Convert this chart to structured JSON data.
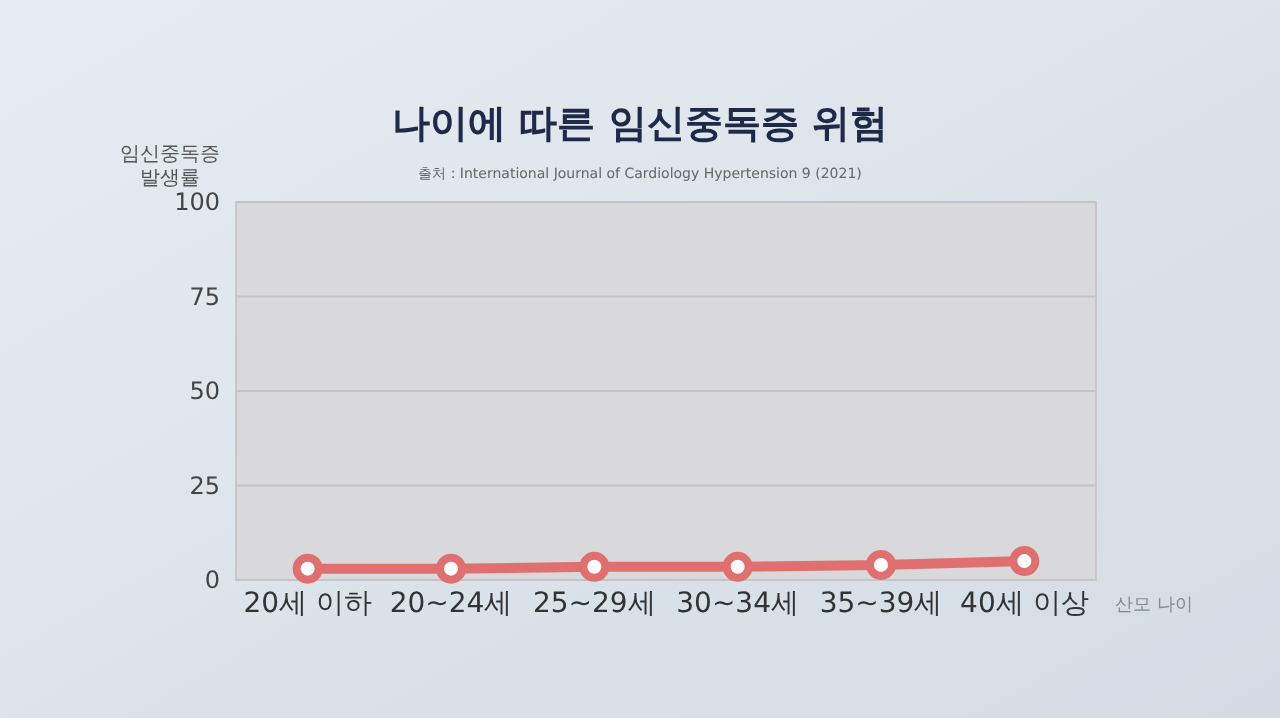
{
  "chart_data": {
    "type": "line",
    "title": "나이에 따른 임신중독증 위험",
    "subtitle": "출처 : International Journal of Cardiology Hypertension 9 (2021)",
    "ylabel": "임신중독증 발생률",
    "xlabel": "산모 나이",
    "categories": [
      "20세 이하",
      "20~24세",
      "25~29세",
      "30~34세",
      "35~39세",
      "40세 이상"
    ],
    "series": [
      {
        "color": "#e07070",
        "values": [
          3,
          3,
          3.5,
          3.5,
          4,
          5
        ]
      }
    ],
    "ylim": [
      0,
      100
    ],
    "yticks": [
      0,
      25,
      50,
      75,
      100
    ],
    "grid": "y",
    "marker": "circle",
    "line_style": "solid"
  }
}
